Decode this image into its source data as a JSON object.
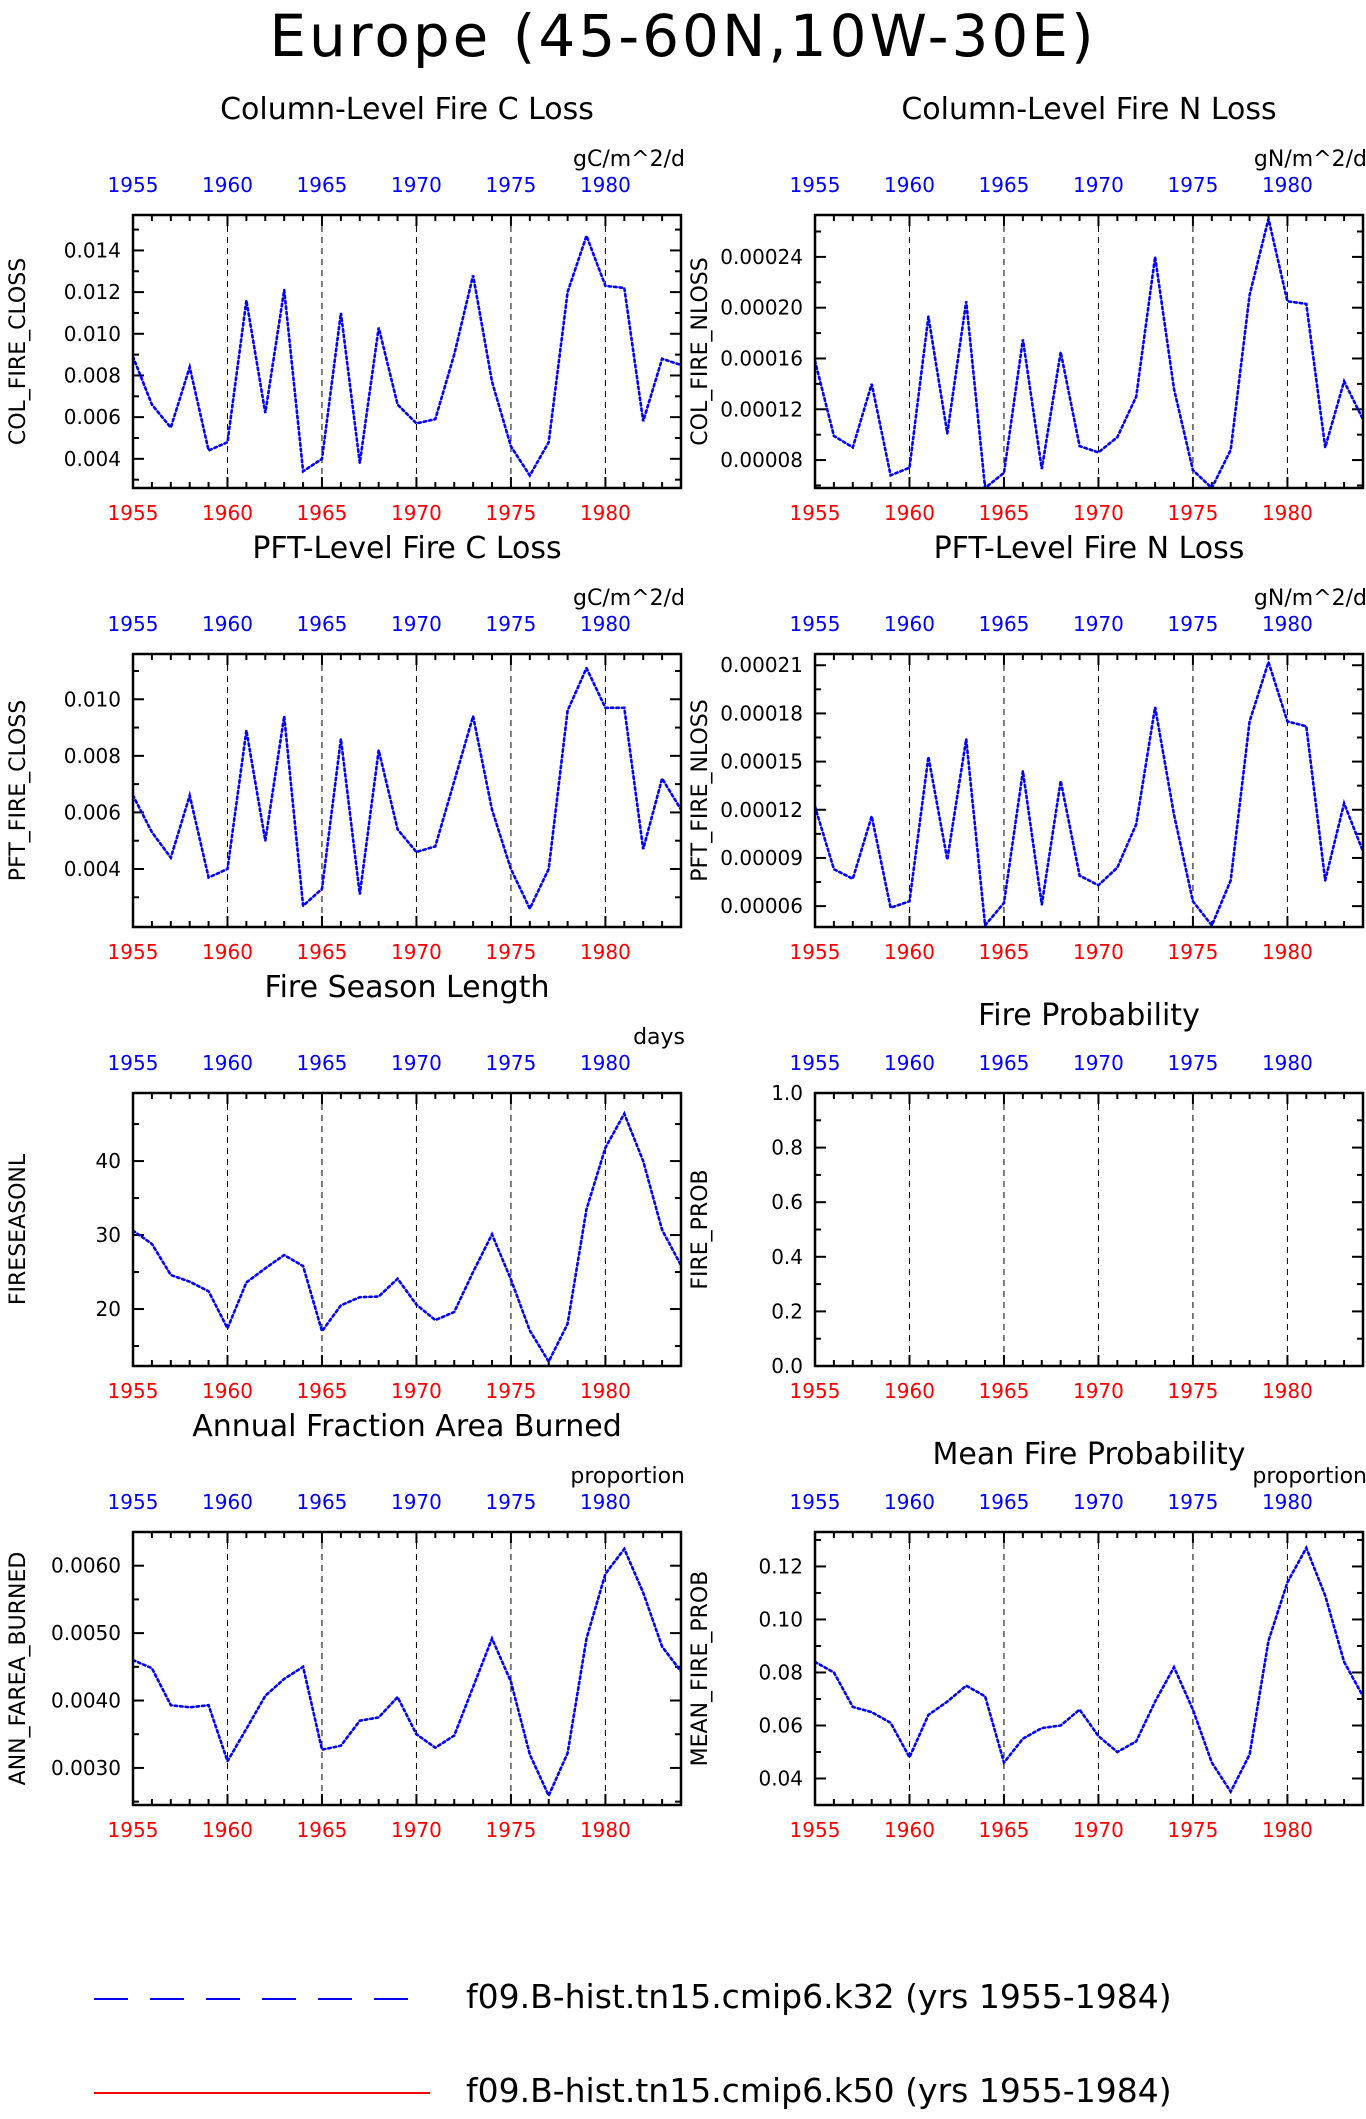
{
  "title": "Europe (45-60N,10W-30E)",
  "chart_data": [
    {
      "type": "line",
      "title": "Column-Level Fire C Loss",
      "ylabel": "COL_FIRE_CLOSS",
      "units": "gC/m^2/d",
      "x_top_ticks": [
        "1955",
        "1960",
        "1965",
        "1970",
        "1975",
        "1980"
      ],
      "x_bottom_ticks": [
        "1955",
        "1960",
        "1965",
        "1970",
        "1975",
        "1980"
      ],
      "xlim": [
        1955,
        1984
      ],
      "ylim": [
        0.0026,
        0.0157
      ],
      "yticks": [
        0.004,
        0.006,
        0.008,
        0.01,
        0.012,
        0.014
      ],
      "ytick_labels": [
        "0.004",
        "0.006",
        "0.008",
        "0.010",
        "0.012",
        "0.014"
      ],
      "grid": "dashed vertical lines at 5-year ticks",
      "series": [
        {
          "color": "#0000ff",
          "x": [
            1955,
            1956,
            1957,
            1958,
            1959,
            1960,
            1961,
            1962,
            1963,
            1964,
            1965,
            1966,
            1967,
            1968,
            1969,
            1970,
            1971,
            1972,
            1973,
            1974,
            1975,
            1976,
            1977,
            1978,
            1979,
            1980,
            1981,
            1982,
            1983,
            1984
          ],
          "y": [
            0.0089,
            0.0066,
            0.0055,
            0.0084,
            0.0044,
            0.0048,
            0.0116,
            0.0062,
            0.0121,
            0.0034,
            0.004,
            0.011,
            0.0038,
            0.0103,
            0.0066,
            0.0057,
            0.0059,
            0.009,
            0.0128,
            0.0077,
            0.0046,
            0.0032,
            0.0048,
            0.012,
            0.0147,
            0.0123,
            0.0122,
            0.0058,
            0.0088,
            0.0085
          ]
        }
      ]
    },
    {
      "type": "line",
      "title": "Column-Level Fire N Loss",
      "ylabel": "COL_FIRE_NLOSS",
      "units": "gN/m^2/d",
      "x_top_ticks": [
        "1955",
        "1960",
        "1965",
        "1970",
        "1975",
        "1980"
      ],
      "x_bottom_ticks": [
        "1955",
        "1960",
        "1965",
        "1970",
        "1975",
        "1980"
      ],
      "xlim": [
        1955,
        1984
      ],
      "ylim": [
        5.8e-05,
        0.000273
      ],
      "yticks": [
        8e-05,
        0.00012,
        0.00016,
        0.0002,
        0.00024
      ],
      "ytick_labels": [
        "0.00008",
        "0.00012",
        "0.00016",
        "0.00020",
        "0.00024"
      ],
      "grid": "dashed vertical lines at 5-year ticks",
      "series": [
        {
          "color": "#0000ff",
          "x": [
            1955,
            1956,
            1957,
            1958,
            1959,
            1960,
            1961,
            1962,
            1963,
            1964,
            1965,
            1966,
            1967,
            1968,
            1969,
            1970,
            1971,
            1972,
            1973,
            1974,
            1975,
            1976,
            1977,
            1978,
            1979,
            1980,
            1981,
            1982,
            1983,
            1984
          ],
          "y": [
            0.000158,
            9.9e-05,
            9e-05,
            0.00014,
            6.8e-05,
            7.4e-05,
            0.000193,
            0.000101,
            0.000205,
            5.8e-05,
            7e-05,
            0.000175,
            7.3e-05,
            0.000165,
            9.1e-05,
            8.6e-05,
            9.8e-05,
            0.00013,
            0.00024,
            0.000136,
            7.2e-05,
            5.8e-05,
            8.8e-05,
            0.00021,
            0.00027,
            0.000205,
            0.000203,
            9e-05,
            0.000142,
            0.000112
          ]
        }
      ]
    },
    {
      "type": "line",
      "title": "PFT-Level Fire C Loss",
      "ylabel": "PFT_FIRE_CLOSS",
      "units": "gC/m^2/d",
      "x_top_ticks": [
        "1955",
        "1960",
        "1965",
        "1970",
        "1975",
        "1980"
      ],
      "x_bottom_ticks": [
        "1955",
        "1960",
        "1965",
        "1970",
        "1975",
        "1980"
      ],
      "xlim": [
        1955,
        1984
      ],
      "ylim": [
        0.00195,
        0.0116
      ],
      "yticks": [
        0.004,
        0.006,
        0.008,
        0.01
      ],
      "ytick_labels": [
        "0.004",
        "0.006",
        "0.008",
        "0.010"
      ],
      "grid": "dashed vertical lines at 5-year ticks",
      "series": [
        {
          "color": "#0000ff",
          "x": [
            1955,
            1956,
            1957,
            1958,
            1959,
            1960,
            1961,
            1962,
            1963,
            1964,
            1965,
            1966,
            1967,
            1968,
            1969,
            1970,
            1971,
            1972,
            1973,
            1974,
            1975,
            1976,
            1977,
            1978,
            1979,
            1980,
            1981,
            1982,
            1983,
            1984
          ],
          "y": [
            0.0066,
            0.0053,
            0.0044,
            0.0066,
            0.0037,
            0.004,
            0.0089,
            0.005,
            0.0094,
            0.0027,
            0.0033,
            0.0086,
            0.0031,
            0.0082,
            0.0054,
            0.0046,
            0.0048,
            0.0071,
            0.0094,
            0.0061,
            0.004,
            0.0026,
            0.004,
            0.0096,
            0.0111,
            0.0097,
            0.0097,
            0.0047,
            0.0072,
            0.0061
          ]
        }
      ]
    },
    {
      "type": "line",
      "title": "PFT-Level Fire N Loss",
      "ylabel": "PFT_FIRE_NLOSS",
      "units": "gN/m^2/d",
      "x_top_ticks": [
        "1955",
        "1960",
        "1965",
        "1970",
        "1975",
        "1980"
      ],
      "x_bottom_ticks": [
        "1955",
        "1960",
        "1965",
        "1970",
        "1975",
        "1980"
      ],
      "xlim": [
        1955,
        1984
      ],
      "ylim": [
        4.7e-05,
        0.000217
      ],
      "yticks": [
        6e-05,
        9e-05,
        0.00012,
        0.00015,
        0.00018,
        0.00021
      ],
      "ytick_labels": [
        "0.00006",
        "0.00009",
        "0.00012",
        "0.00015",
        "0.00018",
        "0.00021"
      ],
      "grid": "dashed vertical lines at 5-year ticks",
      "series": [
        {
          "color": "#0000ff",
          "x": [
            1955,
            1956,
            1957,
            1958,
            1959,
            1960,
            1961,
            1962,
            1963,
            1964,
            1965,
            1966,
            1967,
            1968,
            1969,
            1970,
            1971,
            1972,
            1973,
            1974,
            1975,
            1976,
            1977,
            1978,
            1979,
            1980,
            1981,
            1982,
            1983,
            1984
          ],
          "y": [
            0.000122,
            8.3e-05,
            7.7e-05,
            0.000116,
            5.9e-05,
            6.3e-05,
            0.000153,
            8.9e-05,
            0.000164,
            4.8e-05,
            6.2e-05,
            0.000144,
            6.1e-05,
            0.000138,
            7.9e-05,
            7.3e-05,
            8.4e-05,
            0.000111,
            0.000184,
            0.000117,
            6.3e-05,
            4.8e-05,
            7.6e-05,
            0.000175,
            0.000212,
            0.000175,
            0.000172,
            7.6e-05,
            0.000124,
            9.4e-05
          ]
        }
      ]
    },
    {
      "type": "line",
      "title": "Fire Season Length",
      "ylabel": "FIRESEASONL",
      "units": "days",
      "x_top_ticks": [
        "1955",
        "1960",
        "1965",
        "1970",
        "1975",
        "1980"
      ],
      "x_bottom_ticks": [
        "1955",
        "1960",
        "1965",
        "1970",
        "1975",
        "1980"
      ],
      "xlim": [
        1955,
        1984
      ],
      "ylim": [
        12.3,
        49.2
      ],
      "yticks": [
        20,
        30,
        40
      ],
      "ytick_labels": [
        "20",
        "30",
        "40"
      ],
      "grid": "dashed vertical lines at 5-year ticks",
      "series": [
        {
          "color": "#0000ff",
          "x": [
            1955,
            1956,
            1957,
            1958,
            1959,
            1960,
            1961,
            1962,
            1963,
            1964,
            1965,
            1966,
            1967,
            1968,
            1969,
            1970,
            1971,
            1972,
            1973,
            1974,
            1975,
            1976,
            1977,
            1978,
            1979,
            1980,
            1981,
            1982,
            1983,
            1984
          ],
          "y": [
            30.6,
            28.8,
            24.6,
            23.7,
            22.4,
            17.4,
            23.6,
            25.5,
            27.3,
            25.8,
            17.0,
            20.5,
            21.6,
            21.7,
            24.1,
            20.6,
            18.5,
            19.6,
            25.0,
            30.1,
            24.0,
            17.1,
            12.9,
            18.0,
            33.5,
            41.8,
            46.4,
            40.0,
            30.7,
            25.9
          ]
        }
      ]
    },
    {
      "type": "line",
      "title": "Fire Probability",
      "ylabel": "FIRE_PROB",
      "x_top_ticks": [
        "1955",
        "1960",
        "1965",
        "1970",
        "1975",
        "1980"
      ],
      "x_bottom_ticks": [
        "1955",
        "1960",
        "1965",
        "1970",
        "1975",
        "1980"
      ],
      "xlim": [
        1955,
        1984
      ],
      "ylim": [
        0.0,
        1.0
      ],
      "yticks": [
        0.0,
        0.2,
        0.4,
        0.6,
        0.8,
        1.0
      ],
      "ytick_labels": [
        "0.0",
        "0.2",
        "0.4",
        "0.6",
        "0.8",
        "1.0"
      ],
      "grid": "dashed vertical lines at 5-year ticks",
      "series": []
    },
    {
      "type": "line",
      "title": "Annual Fraction Area Burned",
      "ylabel": "ANN_FAREA_BURNED",
      "units": "proportion",
      "x_top_ticks": [
        "1955",
        "1960",
        "1965",
        "1970",
        "1975",
        "1980"
      ],
      "x_bottom_ticks": [
        "1955",
        "1960",
        "1965",
        "1970",
        "1975",
        "1980"
      ],
      "xlim": [
        1955,
        1984
      ],
      "ylim": [
        0.00245,
        0.0065
      ],
      "yticks": [
        0.003,
        0.004,
        0.005,
        0.006
      ],
      "ytick_labels": [
        "0.0030",
        "0.0040",
        "0.0050",
        "0.0060"
      ],
      "grid": "dashed vertical lines at 5-year ticks",
      "series": [
        {
          "color": "#0000ff",
          "x": [
            1955,
            1956,
            1957,
            1958,
            1959,
            1960,
            1961,
            1962,
            1963,
            1964,
            1965,
            1966,
            1967,
            1968,
            1969,
            1970,
            1971,
            1972,
            1973,
            1974,
            1975,
            1976,
            1977,
            1978,
            1979,
            1980,
            1981,
            1982,
            1983,
            1984
          ],
          "y": [
            0.0046,
            0.00448,
            0.00393,
            0.0039,
            0.00393,
            0.0031,
            0.00358,
            0.00407,
            0.00432,
            0.0045,
            0.00327,
            0.00333,
            0.0037,
            0.00375,
            0.00405,
            0.0035,
            0.0033,
            0.00348,
            0.0042,
            0.00492,
            0.00428,
            0.0032,
            0.00259,
            0.00322,
            0.00492,
            0.00588,
            0.00625,
            0.0056,
            0.0048,
            0.00443
          ]
        }
      ]
    },
    {
      "type": "line",
      "title": "Mean Fire Probability",
      "ylabel": "MEAN_FIRE_PROB",
      "units": "proportion",
      "x_top_ticks": [
        "1955",
        "1960",
        "1965",
        "1970",
        "1975",
        "1980"
      ],
      "x_bottom_ticks": [
        "1955",
        "1960",
        "1965",
        "1970",
        "1975",
        "1980"
      ],
      "xlim": [
        1955,
        1984
      ],
      "ylim": [
        0.03,
        0.133
      ],
      "yticks": [
        0.04,
        0.06,
        0.08,
        0.1,
        0.12
      ],
      "ytick_labels": [
        "0.04",
        "0.06",
        "0.08",
        "0.10",
        "0.12"
      ],
      "grid": "dashed vertical lines at 5-year ticks",
      "series": [
        {
          "color": "#0000ff",
          "x": [
            1955,
            1956,
            1957,
            1958,
            1959,
            1960,
            1961,
            1962,
            1963,
            1964,
            1965,
            1966,
            1967,
            1968,
            1969,
            1970,
            1971,
            1972,
            1973,
            1974,
            1975,
            1976,
            1977,
            1978,
            1979,
            1980,
            1981,
            1982,
            1983,
            1984
          ],
          "y": [
            0.084,
            0.08,
            0.067,
            0.065,
            0.061,
            0.048,
            0.064,
            0.069,
            0.075,
            0.071,
            0.046,
            0.055,
            0.059,
            0.06,
            0.066,
            0.056,
            0.05,
            0.054,
            0.069,
            0.082,
            0.066,
            0.046,
            0.035,
            0.049,
            0.092,
            0.114,
            0.127,
            0.109,
            0.084,
            0.071
          ]
        }
      ]
    }
  ],
  "legend": [
    {
      "label": "f09.B-hist.tn15.cmip6.k32 (yrs 1955-1984)",
      "color": "#0000ff",
      "style": "long-dash"
    },
    {
      "label": "f09.B-hist.tn15.cmip6.k50 (yrs 1955-1984)",
      "color": "#ff0000",
      "style": "solid"
    }
  ]
}
